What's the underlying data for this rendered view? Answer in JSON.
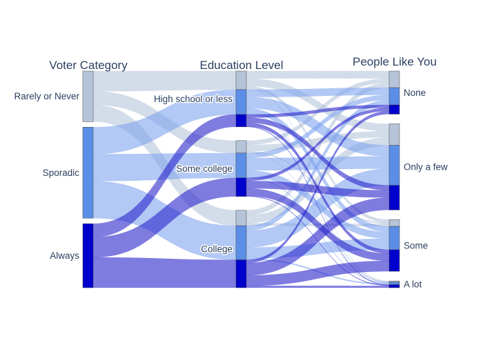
{
  "chart_data": {
    "type": "sankey",
    "stage_titles": [
      "Voter Category",
      "Education Level",
      "People Like You"
    ],
    "stages": [
      {
        "nodes": [
          {
            "label": "Rarely or Never",
            "color": "#b6c4da"
          },
          {
            "label": "Sporadic",
            "color": "#5b8ee6"
          },
          {
            "label": "Always",
            "color": "#0000cc"
          }
        ]
      },
      {
        "nodes": [
          {
            "label": "High school or less"
          },
          {
            "label": "Some college"
          },
          {
            "label": "College"
          }
        ]
      },
      {
        "nodes": [
          {
            "label": "None"
          },
          {
            "label": "Only a few"
          },
          {
            "label": "Some"
          },
          {
            "label": "A lot"
          }
        ]
      }
    ],
    "flows_stage1": [
      {
        "from": "Rarely or Never",
        "to": "High school or less",
        "value": 30
      },
      {
        "from": "Rarely or Never",
        "to": "Some college",
        "value": 20
      },
      {
        "from": "Rarely or Never",
        "to": "College",
        "value": 25
      },
      {
        "from": "Sporadic",
        "to": "High school or less",
        "value": 40
      },
      {
        "from": "Sporadic",
        "to": "Some college",
        "value": 40
      },
      {
        "from": "Sporadic",
        "to": "College",
        "value": 55
      },
      {
        "from": "Always",
        "to": "High school or less",
        "value": 20
      },
      {
        "from": "Always",
        "to": "Some college",
        "value": 30
      },
      {
        "from": "Always",
        "to": "College",
        "value": 45
      }
    ],
    "flows_stage2": [
      {
        "category": "Rarely or Never",
        "education": "High school or less",
        "none": 12,
        "only_a_few": 12,
        "some": 5,
        "a_lot": 1
      },
      {
        "category": "Rarely or Never",
        "education": "Some college",
        "none": 7,
        "only_a_few": 10,
        "some": 2,
        "a_lot": 1
      },
      {
        "category": "Rarely or Never",
        "education": "College",
        "none": 8,
        "only_a_few": 13,
        "some": 4,
        "a_lot": 0
      },
      {
        "category": "Sporadic",
        "education": "High school or less",
        "none": 12,
        "only_a_few": 18,
        "some": 9,
        "a_lot": 1
      },
      {
        "category": "Sporadic",
        "education": "Some college",
        "none": 8,
        "only_a_few": 20,
        "some": 11,
        "a_lot": 1
      },
      {
        "category": "Sporadic",
        "education": "College",
        "none": 8,
        "only_a_few": 27,
        "some": 18,
        "a_lot": 2
      },
      {
        "category": "Always",
        "education": "High school or less",
        "none": 5,
        "only_a_few": 8,
        "some": 6,
        "a_lot": 1
      },
      {
        "category": "Always",
        "education": "Some college",
        "none": 5,
        "only_a_few": 12,
        "some": 12,
        "a_lot": 1
      },
      {
        "category": "Always",
        "education": "College",
        "none": 5,
        "only_a_few": 20,
        "some": 17,
        "a_lot": 3
      }
    ]
  }
}
